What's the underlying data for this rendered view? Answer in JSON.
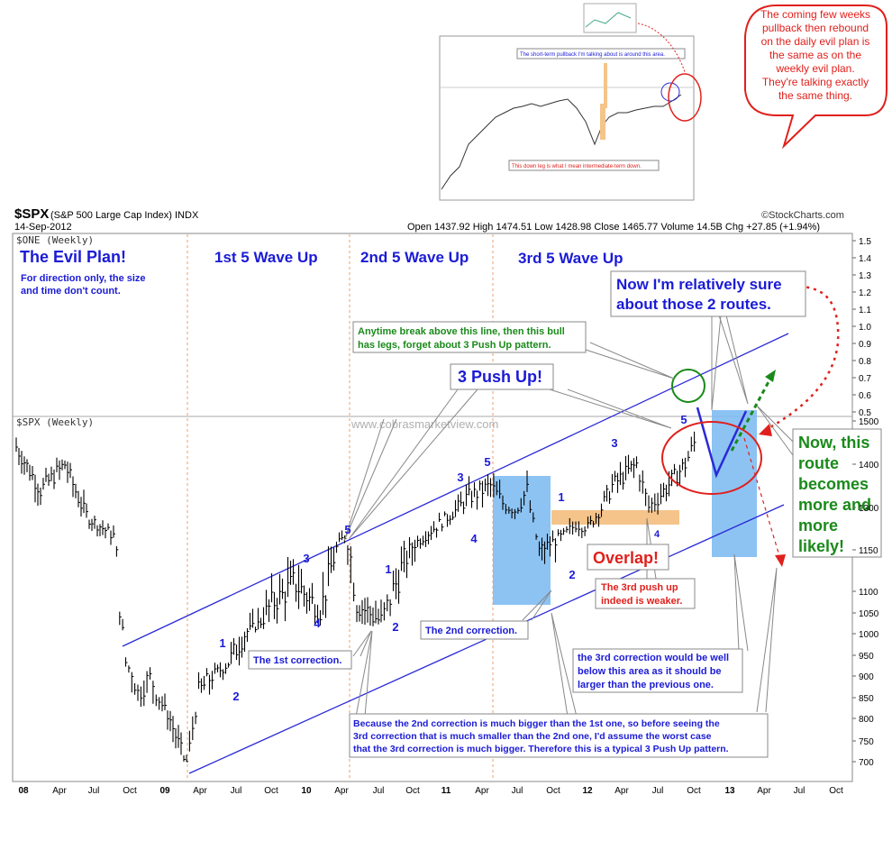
{
  "header": {
    "ticker": "$SPX",
    "name": "(S&P 500 Large Cap Index) INDX",
    "date": "14-Sep-2012",
    "ohlc": "Open 1437.92  High 1474.51  Low 1428.98  Close 1465.77  Volume 14.5B  Chg +27.85 (+1.94%)",
    "brand": "©StockCharts.com"
  },
  "panels": {
    "upper_label": "$ONE (Weekly)",
    "lower_label": "$SPX (Weekly)",
    "watermark": "www.cobrasmarketview.com"
  },
  "labels": {
    "evil_plan": "The Evil Plan!",
    "evil_note_1": "For direction only, the size",
    "evil_note_2": "and time don't count.",
    "wave1": "1st 5 Wave Up",
    "wave2": "2nd 5 Wave Up",
    "wave3": "3rd 5 Wave Up",
    "sure_1": "Now I'm relatively sure",
    "sure_2": "about those 2 routes.",
    "anytime_1": "Anytime break above this line, then this bull",
    "anytime_2": "has legs, forget about 3 Push Up pattern.",
    "push": "3 Push Up!",
    "route_1": "Now, this",
    "route_2": "route",
    "route_3": "becomes",
    "route_4": "more and",
    "route_5": "more",
    "route_6": "likely!",
    "bubble_1": "The coming few weeks",
    "bubble_2": "pullback then rebound",
    "bubble_3": "on the daily evil plan is",
    "bubble_4": "the same as on the",
    "bubble_5": "weekly evil plan.",
    "bubble_6": "They're talking exactly",
    "bubble_7": "the same thing.",
    "overlap": "Overlap!",
    "third_weaker_1": "The 3rd push up",
    "third_weaker_2": "indeed is weaker.",
    "first_corr": "The 1st correction.",
    "second_corr": "The 2nd correction.",
    "third_corr_1": "the 3rd correction would be well",
    "third_corr_2": "below this area as it should be",
    "third_corr_3": "larger than the previous one.",
    "bottom_1": "Because the 2nd correction is much bigger than the 1st one, so before seeing the",
    "bottom_2": "3rd correction that is much smaller than the 2nd one, I'd assume the worst case",
    "bottom_3": "that the 3rd correction is much bigger. Therefore this is a typical 3 Push Up pattern.",
    "inset_1": "The short-term pullback I'm talking about is around this area.",
    "inset_2": "This down leg is what I mean intermediate-term down."
  },
  "wave_labels": [
    "1",
    "2",
    "3",
    "4",
    "5",
    "1",
    "2",
    "3",
    "4",
    "5",
    "1",
    "2",
    "3",
    "4",
    "5"
  ],
  "axes": {
    "upper_ticks": [
      "1.5",
      "1.4",
      "1.3",
      "1.2",
      "1.1",
      "1.0",
      "0.9",
      "0.8",
      "0.7",
      "0.6",
      "0.5"
    ],
    "lower_ticks": [
      "1500",
      "1400",
      "1300",
      "1150",
      "1100",
      "1050",
      "1000",
      "950",
      "900",
      "850",
      "800",
      "750",
      "700"
    ],
    "x_ticks": [
      "08",
      "Apr",
      "Jul",
      "Oct",
      "09",
      "Apr",
      "Jul",
      "Oct",
      "10",
      "Apr",
      "Jul",
      "Oct",
      "11",
      "Apr",
      "Jul",
      "Oct",
      "12",
      "Apr",
      "Jul",
      "Oct",
      "13",
      "Apr",
      "Jul",
      "Oct"
    ]
  },
  "colors": {
    "blue_text": "#1b1bd6",
    "green_text": "#1a8a1a",
    "red_text": "#e0201c",
    "channel": "#2a2ad8",
    "correction_box": "#7fbdf2",
    "overlap_band": "#f5c48a"
  },
  "chart_data": {
    "type": "bar",
    "title": "$SPX (S&P 500 Large Cap Index) INDX",
    "period": "Weekly",
    "ylabel": "",
    "ylim": [
      670,
      1520
    ],
    "x_range": [
      "2008-01",
      "2013-10"
    ],
    "series": [
      {
        "name": "$SPX (Weekly)",
        "x": [
          "2008-01",
          "2008-03",
          "2008-05",
          "2008-07",
          "2008-09",
          "2008-10",
          "2008-11",
          "2008-12",
          "2009-01",
          "2009-03",
          "2009-04",
          "2009-06",
          "2009-08",
          "2009-10",
          "2009-12",
          "2010-02",
          "2010-04",
          "2010-05",
          "2010-07",
          "2010-08",
          "2010-10",
          "2010-12",
          "2011-02",
          "2011-04",
          "2011-05",
          "2011-06",
          "2011-07",
          "2011-08",
          "2011-10",
          "2011-11",
          "2011-12",
          "2012-02",
          "2012-04",
          "2012-05",
          "2012-06",
          "2012-08",
          "2012-09"
        ],
        "values": [
          1440,
          1340,
          1400,
          1260,
          1200,
          950,
          870,
          900,
          850,
          690,
          870,
          930,
          1010,
          1080,
          1110,
          1070,
          1200,
          1080,
          1050,
          1100,
          1180,
          1250,
          1320,
          1350,
          1310,
          1290,
          1340,
          1150,
          1200,
          1240,
          1230,
          1350,
          1400,
          1300,
          1330,
          1400,
          1465
        ]
      }
    ],
    "annotation_values": {
      "channel_lower": [
        [
          2009.2,
          680
        ],
        [
          2012.9,
          1290
        ]
      ],
      "channel_upper": [
        [
          2008.3,
          990
        ],
        [
          2013.0,
          1520
        ]
      ],
      "overlap_zone": [
        1240,
        1280
      ],
      "second_correction_zone": [
        1070,
        1380
      ]
    },
    "upper_panel": {
      "name": "$ONE (Weekly)",
      "ylim": [
        0.5,
        1.5
      ]
    }
  }
}
